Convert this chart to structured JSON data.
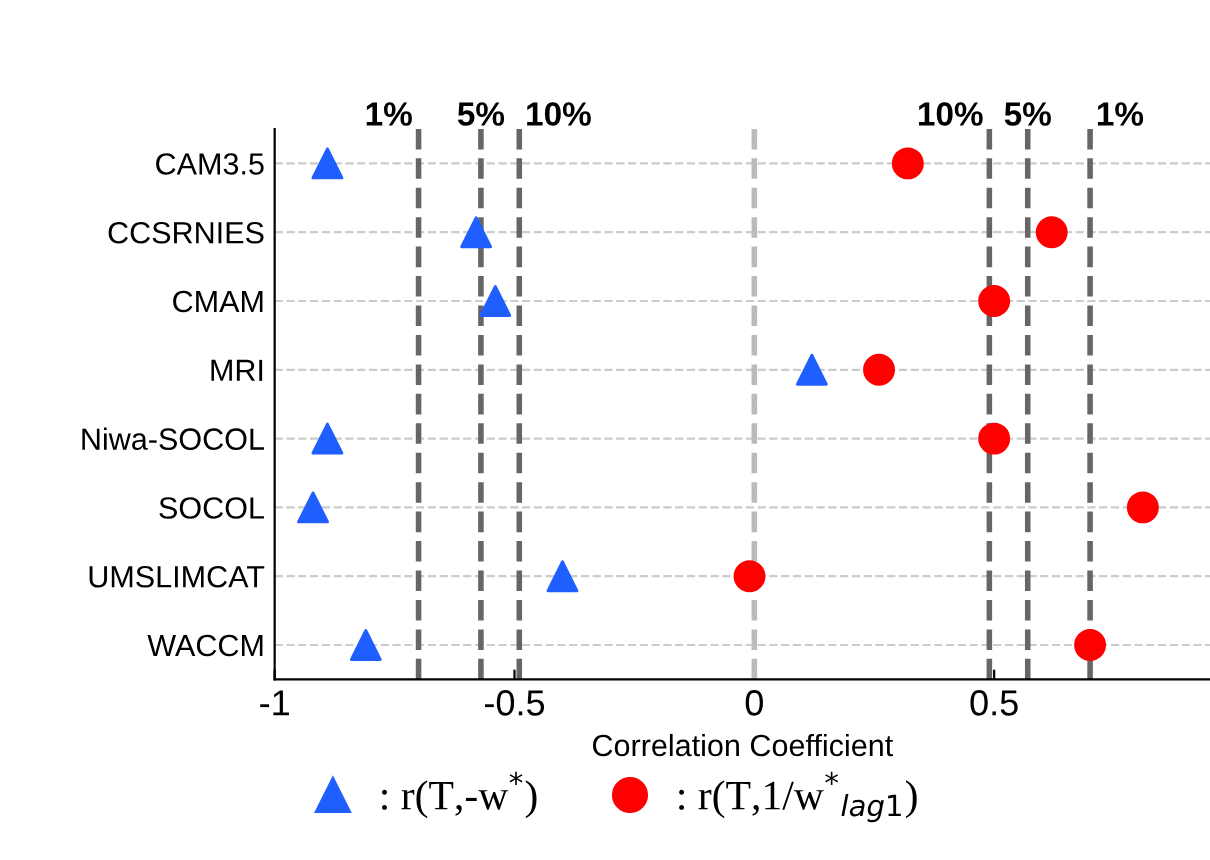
{
  "chart_data": {
    "type": "scatter",
    "xlabel": "Correlation Coefficient",
    "categories": [
      "CAM3.5",
      "CCSRNIES",
      "CMAM",
      "MRI",
      "Niwa-SOCOL",
      "SOCOL",
      "UMSLIMCAT",
      "WACCM"
    ],
    "orientation": "horizontal",
    "series": [
      {
        "name": ": r(T,-w$^{*}$)",
        "color": "#1f5fff",
        "marker": "triangle",
        "values": [
          -0.89,
          -0.58,
          -0.54,
          0.12,
          -0.89,
          -0.92,
          -0.4,
          -0.81
        ]
      },
      {
        "name": ": r(T,1/w$^{*}$$_{lag1}$)",
        "color": "#ff0000",
        "marker": "circle",
        "values": [
          0.32,
          0.62,
          0.5,
          0.26,
          0.5,
          0.81,
          -0.01,
          0.7
        ]
      }
    ],
    "xlim": [
      -1,
      0.95
    ],
    "xticks": [
      -1,
      -0.5,
      0,
      0.5
    ],
    "grid": "y",
    "legend": "bottom",
    "ref_lines": [
      {
        "axis": "x",
        "value": -0.7,
        "color": "#666666",
        "line_style": "dashed"
      },
      {
        "axis": "x",
        "value": -0.57,
        "color": "#666666",
        "line_style": "dashed"
      },
      {
        "axis": "x",
        "value": -0.49,
        "color": "#666666",
        "line_style": "dashed"
      },
      {
        "axis": "x",
        "value": 0,
        "color": "#bbbbbb",
        "line_style": "dashed"
      },
      {
        "axis": "x",
        "value": 0.49,
        "color": "#666666",
        "line_style": "dashed"
      },
      {
        "axis": "x",
        "value": 0.57,
        "color": "#666666",
        "line_style": "dashed"
      },
      {
        "axis": "x",
        "value": 0.7,
        "color": "#666666",
        "line_style": "dashed"
      }
    ],
    "annotations": [
      "1%",
      "5%",
      "10%",
      "10%",
      "5%",
      "1%"
    ]
  }
}
